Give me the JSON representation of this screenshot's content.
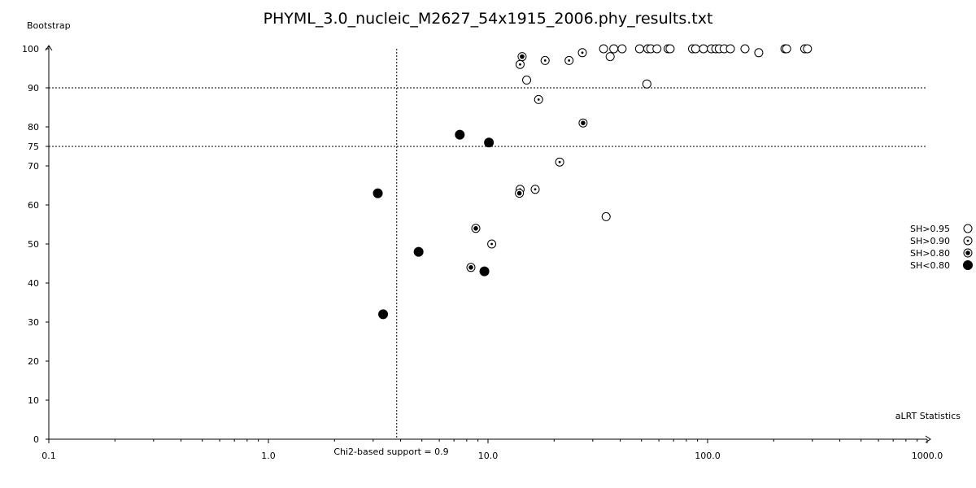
{
  "chart_data": {
    "type": "scatter",
    "title": "PHYML_3.0_nucleic_M2627_54x1915_2006.phy_results.txt",
    "xlabel": "aLRT Statistics",
    "ylabel": "Bootstrap",
    "x_scale": "log",
    "xlim": [
      0.1,
      1000.0
    ],
    "ylim": [
      0,
      100
    ],
    "x_ticks": [
      "0.1",
      "1.0",
      "10.0",
      "100.0",
      "1000.0"
    ],
    "y_ticks": [
      "0",
      "10",
      "20",
      "30",
      "40",
      "50",
      "60",
      "70",
      "75",
      "80",
      "90",
      "100"
    ],
    "reference_lines": {
      "vertical": {
        "x": 3.84,
        "label": "Chi2-based support = 0.9"
      },
      "horizontal": [
        75,
        90
      ]
    },
    "legend": {
      "placement": "right",
      "entries": [
        {
          "label": "SH>0.95",
          "marker": "open"
        },
        {
          "label": "SH>0.90",
          "marker": "dot-small"
        },
        {
          "label": "SH>0.80",
          "marker": "dot-large"
        },
        {
          "label": "SH<0.80",
          "marker": "filled"
        }
      ]
    },
    "series": [
      {
        "name": "SH>0.95",
        "points": [
          [
            33.6,
            100
          ],
          [
            37.4,
            100
          ],
          [
            40.8,
            100
          ],
          [
            49.0,
            100
          ],
          [
            53.4,
            100
          ],
          [
            55.1,
            100
          ],
          [
            58.8,
            100
          ],
          [
            66.1,
            100
          ],
          [
            67.5,
            100
          ],
          [
            85.4,
            100
          ],
          [
            88.2,
            100
          ],
          [
            95.8,
            100
          ],
          [
            104,
            100
          ],
          [
            109,
            100
          ],
          [
            113,
            100
          ],
          [
            119,
            100
          ],
          [
            127,
            100
          ],
          [
            148,
            100
          ],
          [
            225,
            100
          ],
          [
            229,
            100
          ],
          [
            277,
            100
          ],
          [
            285,
            100
          ],
          [
            171,
            99
          ],
          [
            36.0,
            98
          ],
          [
            15.0,
            92
          ],
          [
            52.9,
            91
          ],
          [
            34.5,
            57
          ]
        ]
      },
      {
        "name": "SH>0.90",
        "points": [
          [
            26.9,
            99
          ],
          [
            23.4,
            97
          ],
          [
            18.2,
            97
          ],
          [
            14.0,
            96
          ],
          [
            17.0,
            87
          ],
          [
            21.2,
            71
          ],
          [
            14.0,
            64
          ],
          [
            16.4,
            64
          ],
          [
            10.4,
            50
          ]
        ]
      },
      {
        "name": "SH>0.80",
        "points": [
          [
            14.3,
            98
          ],
          [
            27.1,
            81
          ],
          [
            13.9,
            63
          ],
          [
            8.8,
            54
          ],
          [
            8.36,
            44
          ]
        ]
      },
      {
        "name": "SH<0.80",
        "points": [
          [
            7.44,
            78
          ],
          [
            10.1,
            76
          ],
          [
            3.15,
            63
          ],
          [
            4.83,
            48
          ],
          [
            9.63,
            43
          ],
          [
            3.33,
            32
          ]
        ]
      }
    ]
  }
}
